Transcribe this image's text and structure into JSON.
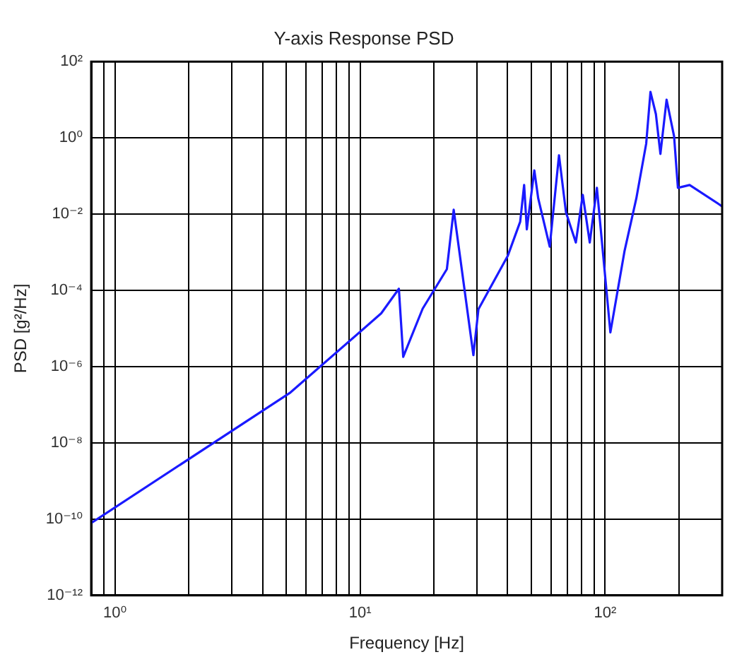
{
  "chart_data": {
    "type": "line",
    "title": "Y-axis Response PSD",
    "xlabel": "Frequency [Hz]",
    "ylabel": "PSD [g²/Hz]",
    "log": "xy",
    "grid": true,
    "xlim": [
      0.8,
      300
    ],
    "ylim": [
      1e-12,
      100
    ],
    "xticks": [
      {
        "value": 0.9,
        "label": null
      },
      {
        "value": 1,
        "label": "10⁰"
      },
      {
        "value": 2,
        "label": null
      },
      {
        "value": 3,
        "label": null
      },
      {
        "value": 4,
        "label": null
      },
      {
        "value": 5,
        "label": null
      },
      {
        "value": 6,
        "label": null
      },
      {
        "value": 7,
        "label": null
      },
      {
        "value": 8,
        "label": null
      },
      {
        "value": 9,
        "label": null
      },
      {
        "value": 10,
        "label": "10¹"
      },
      {
        "value": 20,
        "label": null
      },
      {
        "value": 30,
        "label": null
      },
      {
        "value": 40,
        "label": null
      },
      {
        "value": 50,
        "label": null
      },
      {
        "value": 60,
        "label": null
      },
      {
        "value": 70,
        "label": null
      },
      {
        "value": 80,
        "label": null
      },
      {
        "value": 90,
        "label": null
      },
      {
        "value": 100,
        "label": "10²"
      },
      {
        "value": 200,
        "label": null
      }
    ],
    "yticks": [
      {
        "value": 1e-12,
        "label": "10⁻¹²"
      },
      {
        "value": 1e-10,
        "label": "10⁻¹⁰"
      },
      {
        "value": 1e-08,
        "label": "10⁻⁸"
      },
      {
        "value": 1e-06,
        "label": "10⁻⁶"
      },
      {
        "value": 0.0001,
        "label": "10⁻⁴"
      },
      {
        "value": 0.01,
        "label": "10⁻²"
      },
      {
        "value": 1,
        "label": "10⁰"
      },
      {
        "value": 100,
        "label": "10²"
      }
    ],
    "series": [
      {
        "color": "#1a1aff",
        "x": [
          0.8,
          5.2,
          12.2,
          14.4,
          15.0,
          18.0,
          22.6,
          24.1,
          29.0,
          30.4,
          40,
          45,
          46.7,
          47.9,
          51.4,
          53.3,
          59.4,
          64.8,
          69.2,
          75.9,
          81.0,
          86.5,
          92.5,
          105,
          120,
          134,
          147,
          153,
          161,
          168,
          178,
          191,
          198,
          221,
          300
        ],
        "values": [
          7.9e-11,
          2.1e-07,
          2.5e-05,
          0.00011,
          1.8e-06,
          3.3e-05,
          0.00036,
          0.013,
          2e-06,
          3.2e-05,
          0.00079,
          0.0063,
          0.058,
          0.004,
          0.14,
          0.026,
          0.0014,
          0.35,
          0.011,
          0.0018,
          0.032,
          0.0018,
          0.049,
          7.9e-06,
          0.0011,
          0.026,
          0.71,
          16,
          4.2,
          0.38,
          10,
          1.1,
          0.049,
          0.058,
          0.016
        ]
      }
    ]
  }
}
